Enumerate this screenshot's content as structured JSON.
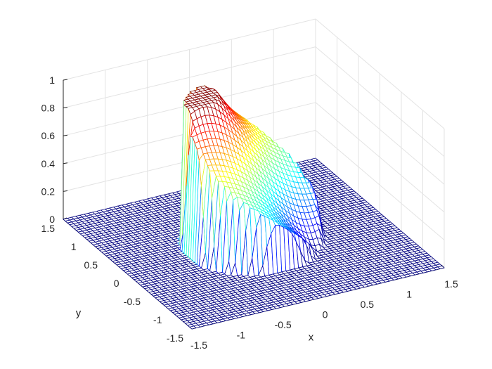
{
  "chart_data": {
    "type": "surface",
    "title": "",
    "xlabel": "x",
    "ylabel": "y",
    "zlabel": "",
    "xlim": [
      -1.5,
      1.5
    ],
    "ylim": [
      -1.5,
      1.5
    ],
    "zlim": [
      0,
      1
    ],
    "xticks": [
      "-1.5",
      "-1",
      "-0.5",
      "0",
      "0.5",
      "1",
      "1.5"
    ],
    "yticks": [
      "-1.5",
      "-1",
      "-0.5",
      "0",
      "0.5",
      "1",
      "1.5"
    ],
    "zticks": [
      "0",
      "0.2",
      "0.4",
      "0.6",
      "0.8",
      "1"
    ],
    "grid": true,
    "colormap": "jet",
    "render": "mesh",
    "grid_points": 61,
    "surface": {
      "support_radius": 0.75,
      "plateau_center": [
        -0.5,
        0.5
      ],
      "plateau_radius": 0.3,
      "plateau_height": 1.0,
      "low_point": [
        0.5,
        -0.5
      ],
      "low_height": 0.0
    }
  }
}
